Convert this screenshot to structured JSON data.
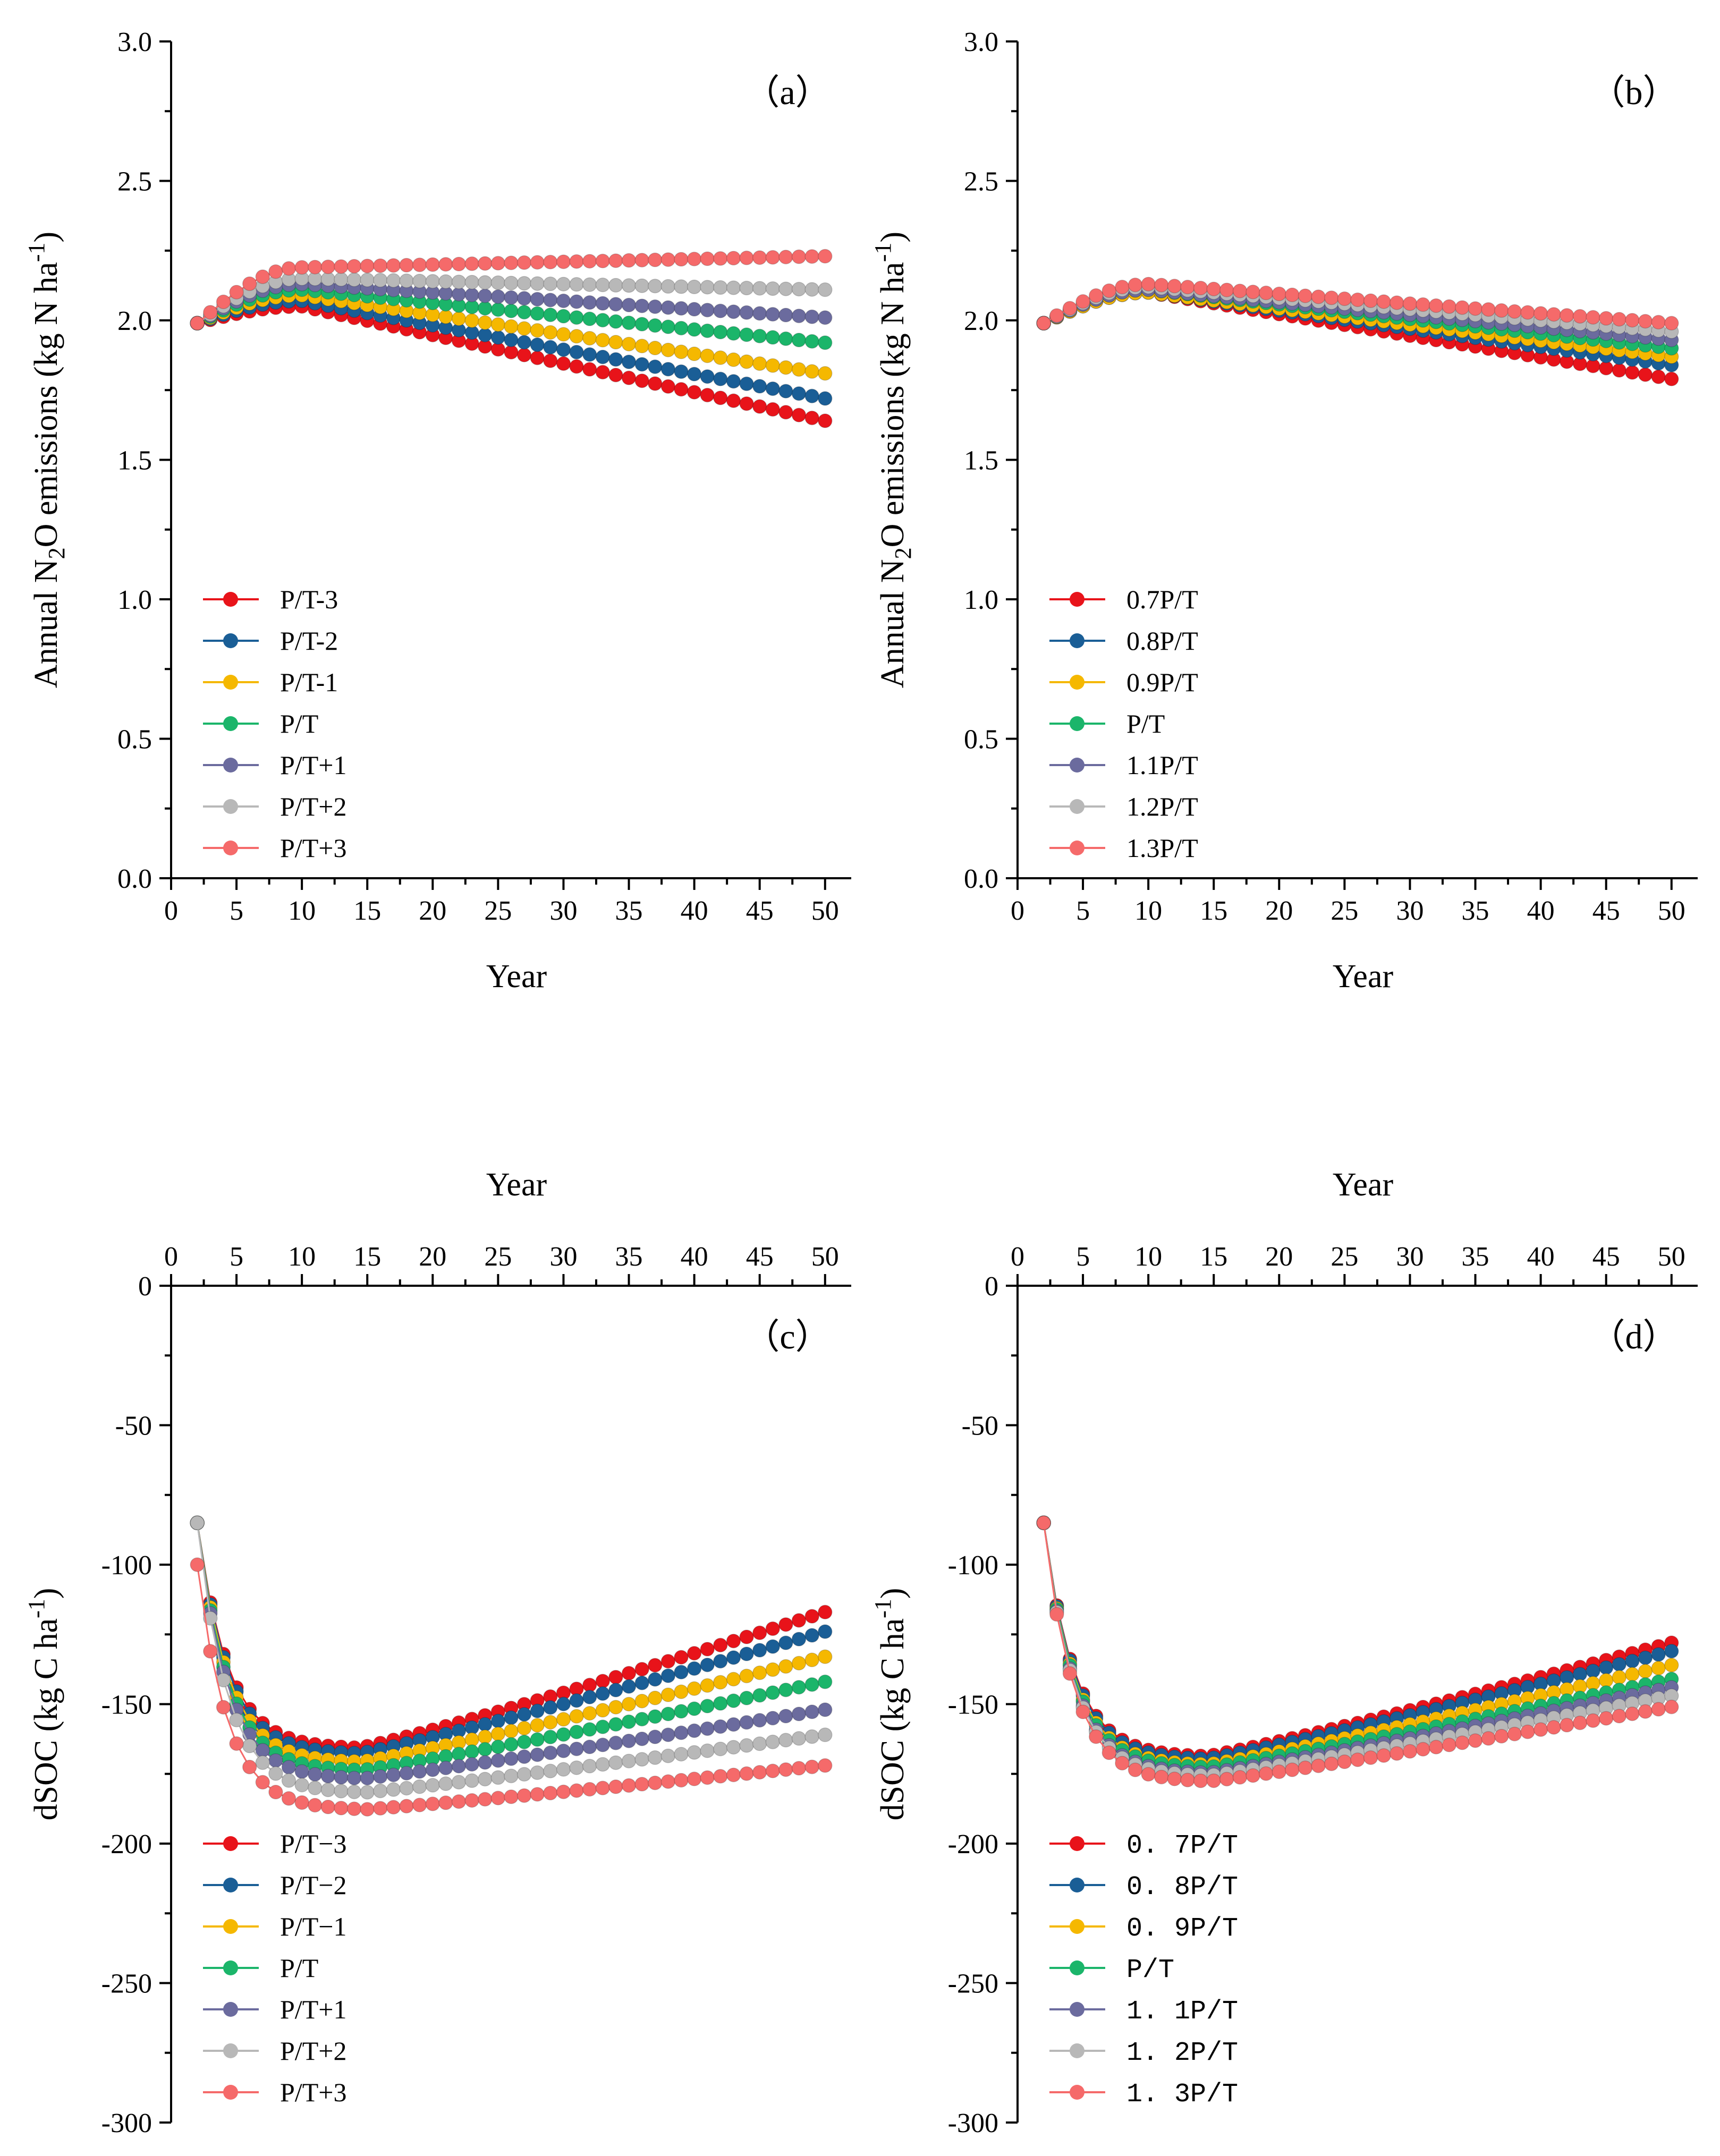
{
  "figure": {
    "colors": {
      "P/T-3": "#e8131a",
      "P/T-2": "#1a5e96",
      "P/T-1": "#f5b800",
      "P/T": "#1bb56a",
      "P/T+1": "#6b6b9e",
      "P/T+2": "#b8b8b8",
      "P/T+3": "#f56a6a"
    }
  },
  "chart_data": [
    {
      "panel": "a",
      "type": "line",
      "label": "（a）",
      "xlabel": "Year",
      "ylabel_parts": [
        "Annual N",
        "2",
        "O emissions (kg N ha",
        "-1",
        ")"
      ],
      "xlim": [
        0,
        52
      ],
      "ylim": [
        0,
        3.0
      ],
      "xticks": [
        0,
        5,
        10,
        15,
        20,
        25,
        30,
        35,
        40,
        45,
        50
      ],
      "yticks": [
        0.0,
        0.5,
        1.0,
        1.5,
        2.0,
        2.5,
        3.0
      ],
      "ytick_labels": [
        "0.0",
        "0.5",
        "1.0",
        "1.5",
        "2.0",
        "2.5",
        "3.0"
      ],
      "legend_position": "bottom-left",
      "series": [
        {
          "name": "P/T-3",
          "start": 1.99,
          "peak": 2.05,
          "end": 1.64
        },
        {
          "name": "P/T-2",
          "start": 1.99,
          "peak": 2.07,
          "end": 1.72
        },
        {
          "name": "P/T-1",
          "start": 1.99,
          "peak": 2.09,
          "end": 1.81
        },
        {
          "name": "P/T",
          "start": 1.99,
          "peak": 2.11,
          "end": 1.92
        },
        {
          "name": "P/T+1",
          "start": 1.99,
          "peak": 2.13,
          "end": 2.01
        },
        {
          "name": "P/T+2",
          "start": 1.99,
          "peak": 2.15,
          "end": 2.11
        },
        {
          "name": "P/T+3",
          "start": 1.99,
          "peak": 2.19,
          "end": 2.23
        }
      ]
    },
    {
      "panel": "b",
      "type": "line",
      "label": "（b）",
      "xlabel": "Year",
      "ylabel_parts": [
        "Annual N",
        "2",
        "O emissions (kg N ha",
        "-1",
        ")"
      ],
      "xlim": [
        0,
        52
      ],
      "ylim": [
        0,
        3.0
      ],
      "xticks": [
        0,
        5,
        10,
        15,
        20,
        25,
        30,
        35,
        40,
        45,
        50
      ],
      "yticks": [
        0.0,
        0.5,
        1.0,
        1.5,
        2.0,
        2.5,
        3.0
      ],
      "ytick_labels": [
        "0.0",
        "0.5",
        "1.0",
        "1.5",
        "2.0",
        "2.5",
        "3.0"
      ],
      "legend_position": "bottom-left",
      "series": [
        {
          "name": "0.7P/T",
          "start": 1.99,
          "peak": 2.1,
          "end": 1.79
        },
        {
          "name": "0.8P/T",
          "start": 1.99,
          "peak": 2.1,
          "end": 1.84
        },
        {
          "name": "0.9P/T",
          "start": 1.99,
          "peak": 2.1,
          "end": 1.87
        },
        {
          "name": "P/T",
          "start": 1.99,
          "peak": 2.11,
          "end": 1.9
        },
        {
          "name": "1.1P/T",
          "start": 1.99,
          "peak": 2.11,
          "end": 1.93
        },
        {
          "name": "1.2P/T",
          "start": 1.99,
          "peak": 2.12,
          "end": 1.96
        },
        {
          "name": "1.3P/T",
          "start": 1.99,
          "peak": 2.13,
          "end": 1.99
        }
      ]
    },
    {
      "panel": "c",
      "type": "line",
      "label": "（c）",
      "xlabel": "Year",
      "ylabel_parts": [
        "dSOC  (kg C ha",
        "-1",
        ")"
      ],
      "xlim": [
        0,
        52
      ],
      "ylim": [
        -300,
        0
      ],
      "xticks": [
        0,
        5,
        10,
        15,
        20,
        25,
        30,
        35,
        40,
        45,
        50
      ],
      "yticks": [
        0,
        -50,
        -100,
        -150,
        -200,
        -250,
        -300
      ],
      "ytick_labels": [
        "0",
        "-50",
        "-100",
        "-150",
        "-200",
        "-250",
        "-300"
      ],
      "legend_position": "bottom-left",
      "series": [
        {
          "name": "P/T−3",
          "start": -85,
          "trough": -166,
          "end": -117
        },
        {
          "name": "P/T−2",
          "start": -85,
          "trough": -168,
          "end": -124
        },
        {
          "name": "P/T−1",
          "start": -85,
          "trough": -171,
          "end": -133
        },
        {
          "name": "P/T",
          "start": -85,
          "trough": -174,
          "end": -142
        },
        {
          "name": "P/T+1",
          "start": -85,
          "trough": -177,
          "end": -152
        },
        {
          "name": "P/T+2",
          "start": -85,
          "trough": -182,
          "end": -161
        },
        {
          "name": "P/T+3",
          "start": -100,
          "trough": -188,
          "end": -172
        }
      ]
    },
    {
      "panel": "d",
      "type": "line",
      "label": "（d）",
      "xlabel": "Year",
      "ylabel_parts": [
        "dSOC  (kg C ha",
        "-1",
        ")"
      ],
      "xlim": [
        0,
        52
      ],
      "ylim": [
        -300,
        0
      ],
      "xticks": [
        0,
        5,
        10,
        15,
        20,
        25,
        30,
        35,
        40,
        45,
        50
      ],
      "yticks": [
        0,
        -50,
        -100,
        -150,
        -200,
        -250,
        -300
      ],
      "ytick_labels": [
        "0",
        "-50",
        "-100",
        "-150",
        "-200",
        "-250",
        "-300"
      ],
      "legend_position": "bottom-left",
      "series": [
        {
          "name": "0. 7P/T",
          "start": -85,
          "trough": -169,
          "end": -128
        },
        {
          "name": "0. 8P/T",
          "start": -85,
          "trough": -170,
          "end": -131
        },
        {
          "name": "0. 9P/T",
          "start": -85,
          "trough": -172,
          "end": -136
        },
        {
          "name": "P/T",
          "start": -85,
          "trough": -173,
          "end": -141
        },
        {
          "name": "1. 1P/T",
          "start": -85,
          "trough": -175,
          "end": -144
        },
        {
          "name": "1. 2P/T",
          "start": -85,
          "trough": -176,
          "end": -147
        },
        {
          "name": "1. 3P/T",
          "start": -85,
          "trough": -178,
          "end": -151
        }
      ]
    }
  ]
}
